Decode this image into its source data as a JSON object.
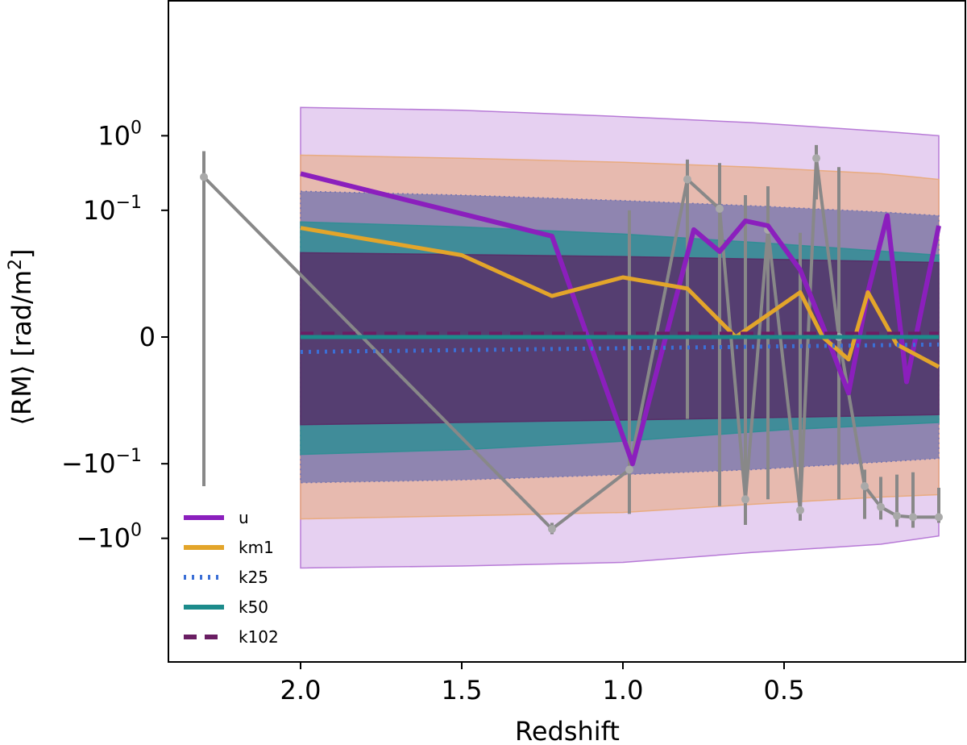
{
  "chart_data": {
    "type": "line",
    "title": "",
    "xlabel": "Redshift",
    "ylabel_parts": [
      "⟨RM⟩ [rad/m",
      "2",
      "]"
    ],
    "x_axis": {
      "inverted": true,
      "ticks": [
        2.0,
        1.5,
        1.0,
        0.5
      ],
      "tick_labels": [
        "2.0",
        "1.5",
        "1.0",
        "0.5"
      ]
    },
    "y_axis": {
      "scale": "symlog",
      "ticks": [
        {
          "base": "10",
          "exp": "0",
          "sign": ""
        },
        {
          "base": "10",
          "exp": "−1",
          "sign": ""
        },
        {
          "base": "0",
          "exp": "",
          "sign": ""
        },
        {
          "base": "10",
          "exp": "−1",
          "sign": "−"
        },
        {
          "base": "10",
          "exp": "0",
          "sign": "−"
        }
      ]
    },
    "bands": [
      {
        "name": "u",
        "color": "#b06ed3",
        "opacity": 0.32,
        "dotted": false,
        "x": [
          2.0,
          1.5,
          1.0,
          0.6,
          0.2,
          0.02
        ],
        "upper": [
          2.4,
          2.2,
          1.8,
          1.5,
          1.15,
          1.0
        ],
        "lower": [
          -2.5,
          -2.35,
          -2.1,
          -1.55,
          -1.2,
          -0.93
        ]
      },
      {
        "name": "km1",
        "color": "#e8a878",
        "opacity": 0.55,
        "dotted": false,
        "x": [
          2.0,
          1.5,
          1.0,
          0.6,
          0.2,
          0.02
        ],
        "upper": [
          0.55,
          0.5,
          0.44,
          0.38,
          0.31,
          0.26
        ],
        "lower": [
          -0.55,
          -0.5,
          -0.45,
          -0.35,
          -0.28,
          -0.26
        ]
      },
      {
        "name": "k25",
        "color": "#6e70b0",
        "opacity": 0.72,
        "dotted": true,
        "x": [
          2.0,
          1.5,
          1.0,
          0.6,
          0.2,
          0.02
        ],
        "upper": [
          0.18,
          0.16,
          0.135,
          0.115,
          0.095,
          0.085
        ],
        "lower": [
          -0.18,
          -0.165,
          -0.14,
          -0.12,
          -0.095,
          -0.085
        ]
      },
      {
        "name": "k50",
        "color": "#2e8e94",
        "opacity": 0.82,
        "dotted": false,
        "x": [
          2.0,
          1.5,
          1.0,
          0.5,
          0.02
        ],
        "upper": [
          0.07,
          0.06,
          0.048,
          0.035,
          0.025
        ],
        "lower": [
          -0.075,
          -0.065,
          -0.05,
          -0.035,
          -0.028
        ]
      },
      {
        "name": "k102",
        "color": "#5a2a66",
        "opacity": 0.8,
        "dotted": false,
        "x": [
          2.0,
          1.0,
          0.02
        ],
        "upper": [
          0.027,
          0.024,
          0.02
        ],
        "lower": [
          -0.03,
          -0.026,
          -0.022
        ]
      }
    ],
    "series": [
      {
        "name": "u",
        "color": "#8b1fbd",
        "width": 6,
        "dash": "",
        "x": [
          2.0,
          1.22,
          0.97,
          0.78,
          0.7,
          0.62,
          0.55,
          0.45,
          0.38,
          0.3,
          0.24,
          0.18,
          0.12,
          0.02
        ],
        "y": [
          0.31,
          0.045,
          -0.1,
          0.055,
          0.028,
          0.072,
          0.062,
          0.018,
          0.003,
          -0.015,
          0.012,
          0.085,
          -0.012,
          0.062
        ]
      },
      {
        "name": "km1",
        "color": "#e3a52a",
        "width": 5,
        "dash": "",
        "x": [
          2.0,
          1.5,
          1.22,
          1.0,
          0.8,
          0.65,
          0.55,
          0.45,
          0.38,
          0.3,
          0.24,
          0.15,
          0.02
        ],
        "y": [
          0.058,
          0.025,
          0.011,
          0.016,
          0.013,
          0.0,
          0.006,
          0.012,
          0.0,
          -0.006,
          0.012,
          -0.002,
          -0.008
        ]
      },
      {
        "name": "k25",
        "color": "#3b6fd6",
        "width": 5,
        "dash": "3,7",
        "x": [
          2.0,
          1.0,
          0.02
        ],
        "y": [
          -0.004,
          -0.003,
          -0.002
        ]
      },
      {
        "name": "k50",
        "color": "#1c8b8b",
        "width": 5,
        "dash": "",
        "x": [
          2.0,
          1.0,
          0.02
        ],
        "y": [
          0.0,
          0.0,
          0.0
        ]
      },
      {
        "name": "k102",
        "color": "#6a1e63",
        "width": 4,
        "dash": "16,10",
        "x": [
          2.0,
          1.0,
          0.02
        ],
        "y": [
          0.001,
          0.001,
          0.001
        ]
      }
    ],
    "observations": {
      "color": "#888888",
      "points": [
        {
          "x": 2.3,
          "y": 0.28,
          "lo": -0.2,
          "hi": 0.62
        },
        {
          "x": 1.22,
          "y": -0.75,
          "lo": -0.88,
          "hi": -0.62
        },
        {
          "x": 0.98,
          "y": -0.12,
          "lo": -0.47,
          "hi": 0.1
        },
        {
          "x": 0.8,
          "y": 0.26,
          "lo": -0.025,
          "hi": 0.48
        },
        {
          "x": 0.7,
          "y": 0.105,
          "lo": -0.37,
          "hi": 0.43
        },
        {
          "x": 0.62,
          "y": -0.3,
          "lo": -0.66,
          "hi": 0.16
        },
        {
          "x": 0.55,
          "y": 0.055,
          "lo": -0.3,
          "hi": 0.21
        },
        {
          "x": 0.45,
          "y": -0.42,
          "lo": -0.58,
          "hi": 0.05
        },
        {
          "x": 0.4,
          "y": 0.5,
          "lo": 0.14,
          "hi": 0.75
        },
        {
          "x": 0.33,
          "y": 0.0,
          "lo": -0.3,
          "hi": 0.38
        },
        {
          "x": 0.25,
          "y": -0.2,
          "lo": -0.55,
          "hi": -0.12
        },
        {
          "x": 0.2,
          "y": -0.38,
          "lo": -0.56,
          "hi": -0.15
        },
        {
          "x": 0.15,
          "y": -0.5,
          "lo": -0.7,
          "hi": -0.14
        },
        {
          "x": 0.1,
          "y": -0.52,
          "lo": -0.72,
          "hi": -0.13
        },
        {
          "x": 0.02,
          "y": -0.52,
          "lo": -0.62,
          "hi": -0.21
        }
      ]
    },
    "legend": {
      "position": "lower-left",
      "entries": [
        {
          "label": "u",
          "color": "#8b1fbd",
          "dash": ""
        },
        {
          "label": "km1",
          "color": "#e3a52a",
          "dash": ""
        },
        {
          "label": "k25",
          "color": "#3b6fd6",
          "dash": "3,7"
        },
        {
          "label": "k50",
          "color": "#1c8b8b",
          "dash": ""
        },
        {
          "label": "k102",
          "color": "#6a1e63",
          "dash": "16,10"
        }
      ]
    }
  }
}
